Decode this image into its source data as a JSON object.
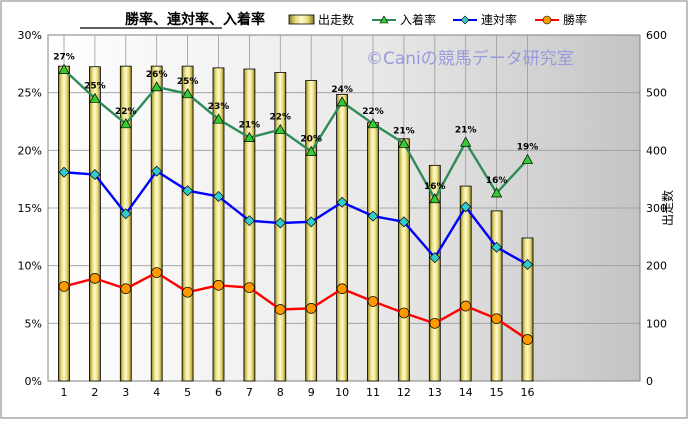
{
  "chart_data": {
    "type": "bar+line",
    "title": "勝率、連対率、入着率",
    "watermark": "©Caniの競馬データ研究室",
    "categories": [
      "1",
      "2",
      "3",
      "4",
      "5",
      "6",
      "7",
      "8",
      "9",
      "10",
      "11",
      "12",
      "13",
      "14",
      "15",
      "16"
    ],
    "y_left": {
      "ticks": [
        "0%",
        "5%",
        "10%",
        "15%",
        "20%",
        "25%",
        "30%"
      ],
      "ylim": [
        0,
        30
      ]
    },
    "y_right": {
      "label": "出走数",
      "ticks": [
        "0",
        "100",
        "200",
        "300",
        "400",
        "500",
        "600"
      ],
      "ylim": [
        0,
        600
      ]
    },
    "series": [
      {
        "name": "出走数",
        "type": "bar",
        "axis": "right",
        "color": "#f0e68c",
        "values": [
          546,
          545,
          546,
          546,
          546,
          543,
          541,
          535,
          521,
          497,
          448,
          420,
          374,
          338,
          295,
          248
        ]
      },
      {
        "name": "入着率",
        "type": "line",
        "axis": "left",
        "color": "#2e8b57",
        "values": [
          27.0,
          24.5,
          22.3,
          25.5,
          24.9,
          22.7,
          21.1,
          21.8,
          19.9,
          24.2,
          22.3,
          20.6,
          15.8,
          20.7,
          16.3,
          19.2
        ],
        "labels": [
          "27%",
          "25%",
          "22%",
          "26%",
          "25%",
          "23%",
          "21%",
          "22%",
          "20%",
          "24%",
          "22%",
          "21%",
          "16%",
          "21%",
          "16%",
          "19%"
        ]
      },
      {
        "name": "連対率",
        "type": "line",
        "axis": "left",
        "color": "#0000ff",
        "values": [
          18.1,
          17.9,
          14.5,
          18.2,
          16.5,
          16.0,
          13.9,
          13.7,
          13.8,
          15.5,
          14.3,
          13.8,
          10.7,
          15.1,
          11.6,
          10.1
        ]
      },
      {
        "name": "勝率",
        "type": "line",
        "axis": "left",
        "color": "#ff0000",
        "values": [
          8.2,
          8.9,
          8.0,
          9.4,
          7.7,
          8.3,
          8.1,
          6.2,
          6.3,
          8.0,
          6.9,
          5.9,
          5.0,
          6.5,
          5.4,
          3.6
        ]
      }
    ],
    "grid": true,
    "legend": "top"
  }
}
